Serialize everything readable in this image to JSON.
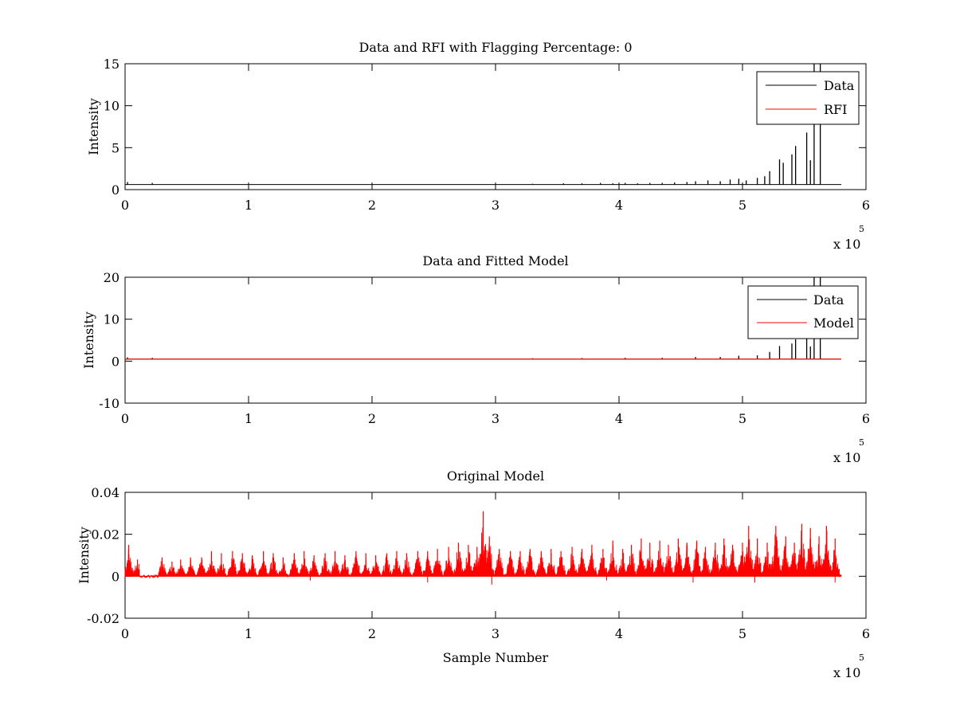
{
  "chart_data": [
    {
      "type": "line",
      "title": "Data and RFI with Flagging Percentage: 0",
      "xlabel": "",
      "ylabel": "Intensity",
      "xlim": [
        0,
        6
      ],
      "ylim": [
        0,
        15
      ],
      "x_ticks": [
        "0",
        "1",
        "2",
        "3",
        "4",
        "5",
        "6"
      ],
      "y_ticks": [
        "0",
        "5",
        "10",
        "15"
      ],
      "x_multiplier": "x 10",
      "x_exponent": "5",
      "legend": {
        "position": "top-right",
        "entries": [
          {
            "label": "Data",
            "color": "#000000"
          },
          {
            "label": "RFI",
            "color": "#ff0000"
          }
        ]
      },
      "baseline": 0.6,
      "series": [
        {
          "name": "Data",
          "color": "#000000",
          "spikes": [
            [
              0.02,
              0.9
            ],
            [
              0.22,
              0.8
            ],
            [
              3.3,
              0.7
            ],
            [
              3.55,
              0.75
            ],
            [
              3.7,
              0.75
            ],
            [
              3.85,
              0.8
            ],
            [
              3.95,
              0.75
            ],
            [
              4.05,
              0.8
            ],
            [
              4.15,
              0.75
            ],
            [
              4.25,
              0.8
            ],
            [
              4.35,
              0.8
            ],
            [
              4.45,
              0.85
            ],
            [
              4.55,
              0.9
            ],
            [
              4.62,
              1.0
            ],
            [
              4.72,
              1.1
            ],
            [
              4.82,
              1.0
            ],
            [
              4.9,
              1.2
            ],
            [
              4.97,
              1.3
            ],
            [
              5.03,
              1.1
            ],
            [
              5.12,
              1.4
            ],
            [
              5.18,
              1.6
            ],
            [
              5.22,
              2.2
            ],
            [
              5.3,
              3.6
            ],
            [
              5.33,
              3.2
            ],
            [
              5.4,
              4.2
            ],
            [
              5.43,
              5.2
            ],
            [
              5.52,
              6.8
            ],
            [
              5.55,
              3.5
            ],
            [
              5.58,
              15
            ],
            [
              5.63,
              15
            ]
          ]
        },
        {
          "name": "RFI",
          "color": "#ff0000",
          "spikes": []
        }
      ]
    },
    {
      "type": "line",
      "title": "Data and Fitted Model",
      "xlabel": "",
      "ylabel": "Intensity",
      "xlim": [
        0,
        6
      ],
      "ylim": [
        -10,
        20
      ],
      "x_ticks": [
        "0",
        "1",
        "2",
        "3",
        "4",
        "5",
        "6"
      ],
      "y_ticks": [
        "-10",
        "0",
        "10",
        "20"
      ],
      "x_multiplier": "x 10",
      "x_exponent": "5",
      "legend": {
        "position": "top-right",
        "entries": [
          {
            "label": "Data",
            "color": "#000000"
          },
          {
            "label": "Model",
            "color": "#ff0000"
          }
        ]
      },
      "baseline": 0.5,
      "series": [
        {
          "name": "Data",
          "color": "#000000",
          "spikes": [
            [
              0.02,
              0.9
            ],
            [
              0.22,
              0.8
            ],
            [
              3.3,
              0.7
            ],
            [
              3.7,
              0.75
            ],
            [
              4.05,
              0.8
            ],
            [
              4.35,
              0.8
            ],
            [
              4.62,
              1.0
            ],
            [
              4.82,
              1.0
            ],
            [
              4.97,
              1.3
            ],
            [
              5.12,
              1.4
            ],
            [
              5.22,
              2.2
            ],
            [
              5.3,
              3.6
            ],
            [
              5.4,
              4.2
            ],
            [
              5.43,
              5.2
            ],
            [
              5.52,
              6.8
            ],
            [
              5.55,
              3.5
            ],
            [
              5.58,
              20
            ],
            [
              5.63,
              20
            ]
          ]
        },
        {
          "name": "Model",
          "color": "#ff0000",
          "spikes": []
        }
      ]
    },
    {
      "type": "line",
      "title": "Original Model",
      "xlabel": "Sample Number",
      "ylabel": "Intensity",
      "xlim": [
        0,
        6
      ],
      "ylim": [
        -0.02,
        0.04
      ],
      "x_ticks": [
        "0",
        "1",
        "2",
        "3",
        "4",
        "5",
        "6"
      ],
      "y_ticks": [
        "-0.02",
        "0",
        "0.02",
        "0.04"
      ],
      "x_multiplier": "x 10",
      "x_exponent": "5",
      "baseline": 0,
      "series": [
        {
          "name": "",
          "color": "#ff0000",
          "peaks": [
            [
              0.03,
              0.015
            ],
            [
              0.1,
              0.008
            ],
            [
              0.3,
              0.009
            ],
            [
              0.38,
              0.007
            ],
            [
              0.45,
              0.008
            ],
            [
              0.53,
              0.009
            ],
            [
              0.62,
              0.009
            ],
            [
              0.7,
              0.012
            ],
            [
              0.78,
              0.011
            ],
            [
              0.87,
              0.012
            ],
            [
              0.95,
              0.011
            ],
            [
              1.03,
              0.01
            ],
            [
              1.12,
              0.012
            ],
            [
              1.2,
              0.011
            ],
            [
              1.28,
              0.009
            ],
            [
              1.37,
              0.011
            ],
            [
              1.45,
              0.012
            ],
            [
              1.53,
              0.01
            ],
            [
              1.62,
              0.011
            ],
            [
              1.7,
              0.012
            ],
            [
              1.78,
              0.01
            ],
            [
              1.87,
              0.012
            ],
            [
              1.95,
              0.011
            ],
            [
              2.03,
              0.01
            ],
            [
              2.12,
              0.011
            ],
            [
              2.2,
              0.012
            ],
            [
              2.28,
              0.011
            ],
            [
              2.37,
              0.012
            ],
            [
              2.45,
              0.012
            ],
            [
              2.53,
              0.013
            ],
            [
              2.62,
              0.014
            ],
            [
              2.7,
              0.016
            ],
            [
              2.78,
              0.015
            ],
            [
              2.85,
              0.014
            ],
            [
              2.9,
              0.031
            ],
            [
              2.95,
              0.019
            ],
            [
              3.03,
              0.013
            ],
            [
              3.12,
              0.012
            ],
            [
              3.2,
              0.012
            ],
            [
              3.28,
              0.013
            ],
            [
              3.37,
              0.012
            ],
            [
              3.45,
              0.013
            ],
            [
              3.53,
              0.012
            ],
            [
              3.62,
              0.014
            ],
            [
              3.7,
              0.013
            ],
            [
              3.78,
              0.015
            ],
            [
              3.87,
              0.013
            ],
            [
              3.95,
              0.017
            ],
            [
              4.03,
              0.013
            ],
            [
              4.1,
              0.015
            ],
            [
              4.18,
              0.018
            ],
            [
              4.25,
              0.016
            ],
            [
              4.33,
              0.017
            ],
            [
              4.4,
              0.015
            ],
            [
              4.48,
              0.018
            ],
            [
              4.55,
              0.016
            ],
            [
              4.63,
              0.017
            ],
            [
              4.7,
              0.014
            ],
            [
              4.78,
              0.016
            ],
            [
              4.85,
              0.018
            ],
            [
              4.92,
              0.015
            ],
            [
              5.0,
              0.016
            ],
            [
              5.05,
              0.024
            ],
            [
              5.12,
              0.018
            ],
            [
              5.2,
              0.016
            ],
            [
              5.27,
              0.024
            ],
            [
              5.35,
              0.019
            ],
            [
              5.42,
              0.016
            ],
            [
              5.48,
              0.025
            ],
            [
              5.55,
              0.023
            ],
            [
              5.62,
              0.019
            ],
            [
              5.68,
              0.024
            ],
            [
              5.75,
              0.018
            ]
          ],
          "dips": [
            [
              0.2,
              -0.001
            ],
            [
              1.5,
              -0.002
            ],
            [
              2.45,
              -0.003
            ],
            [
              2.97,
              -0.004
            ],
            [
              3.9,
              -0.002
            ],
            [
              4.6,
              -0.003
            ],
            [
              5.1,
              -0.003
            ],
            [
              5.75,
              -0.003
            ]
          ]
        }
      ]
    }
  ]
}
